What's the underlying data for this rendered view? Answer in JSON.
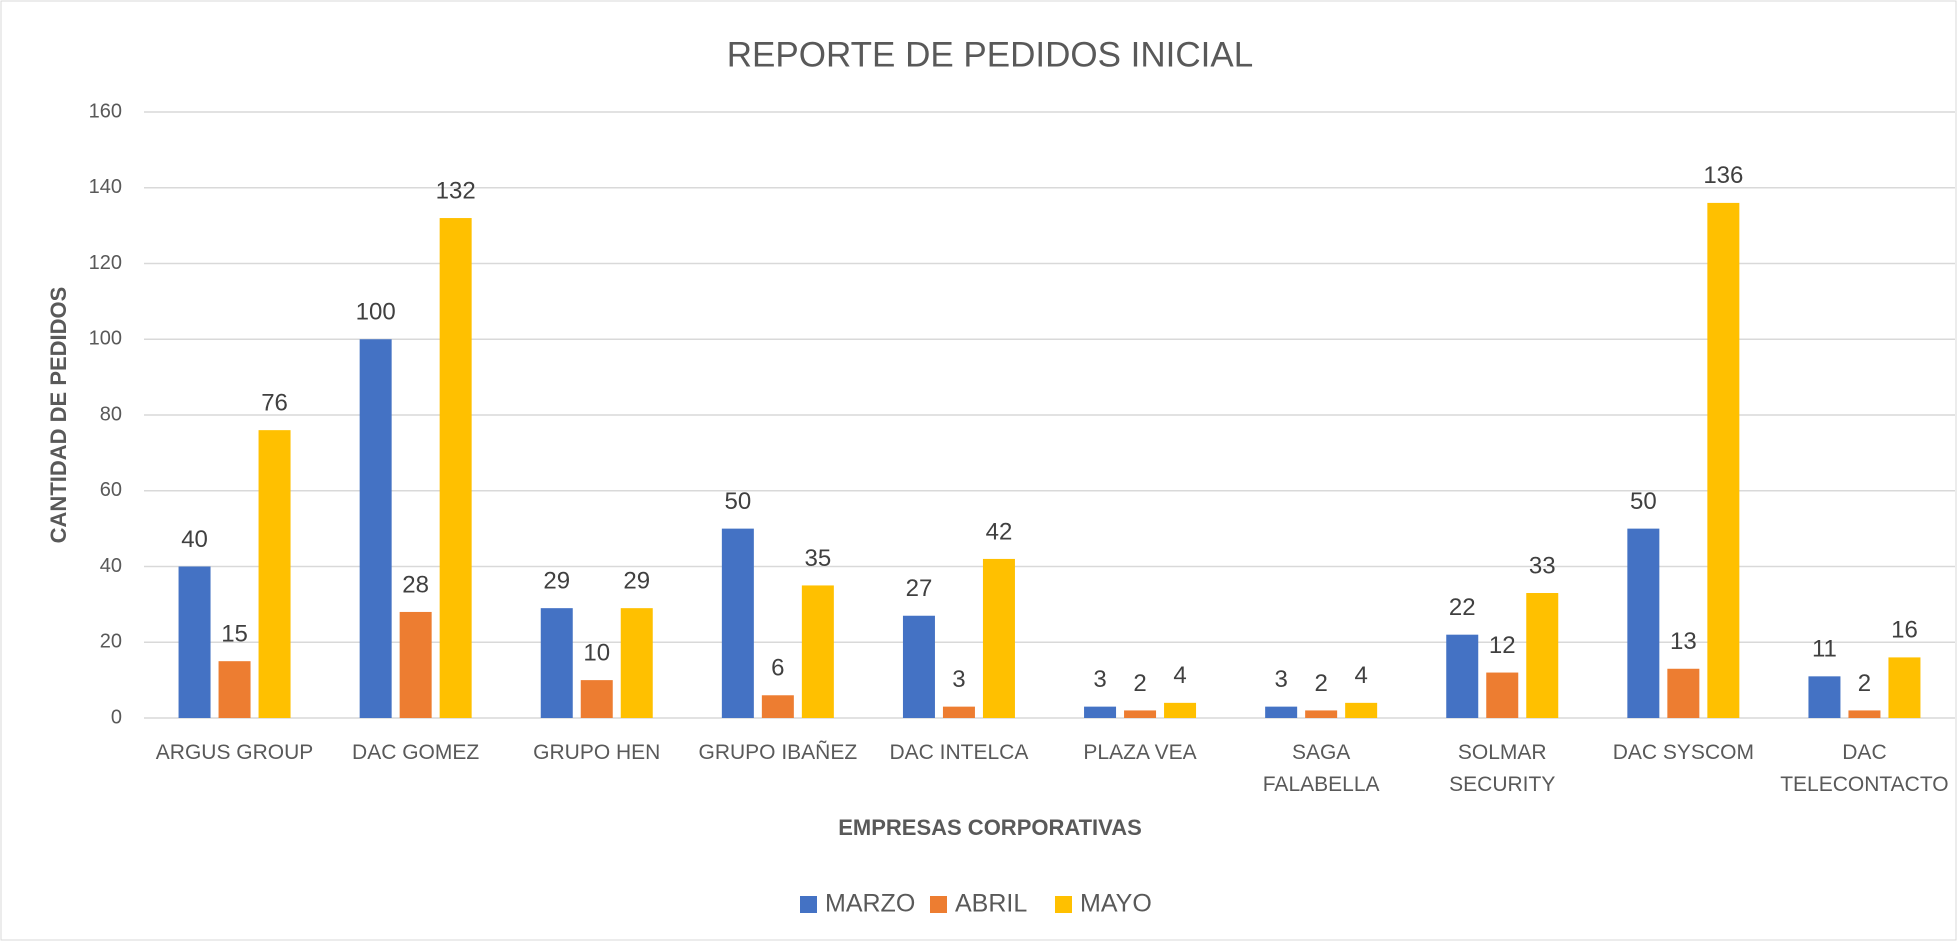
{
  "chart_data": {
    "type": "bar",
    "title": "REPORTE DE PEDIDOS INICIAL",
    "x_label": "EMPRESAS CORPORATIVAS",
    "y_label": "CANTIDAD DE PEDIDOS",
    "categories": [
      "ARGUS GROUP",
      "DAC GOMEZ",
      "GRUPO HEN",
      "GRUPO IBAÑEZ",
      "DAC INTELCA",
      "PLAZA VEA",
      "SAGA FALABELLA",
      "SOLMAR SECURITY",
      "DAC SYSCOM",
      "DAC TELECONTACTO"
    ],
    "series": [
      {
        "name": "MARZO",
        "color": "#4472c4",
        "values": [
          40,
          100,
          29,
          50,
          27,
          3,
          3,
          22,
          50,
          11
        ]
      },
      {
        "name": "ABRIL",
        "color": "#ed7d31",
        "values": [
          15,
          28,
          10,
          6,
          3,
          2,
          2,
          12,
          13,
          2
        ]
      },
      {
        "name": "MAYO",
        "color": "#ffc000",
        "values": [
          76,
          132,
          29,
          35,
          42,
          4,
          4,
          33,
          136,
          16
        ]
      }
    ],
    "ylim": [
      0,
      160
    ],
    "yticks": [
      0,
      20,
      40,
      60,
      80,
      100,
      120,
      140,
      160
    ],
    "grid": true,
    "legend": "bottom"
  }
}
